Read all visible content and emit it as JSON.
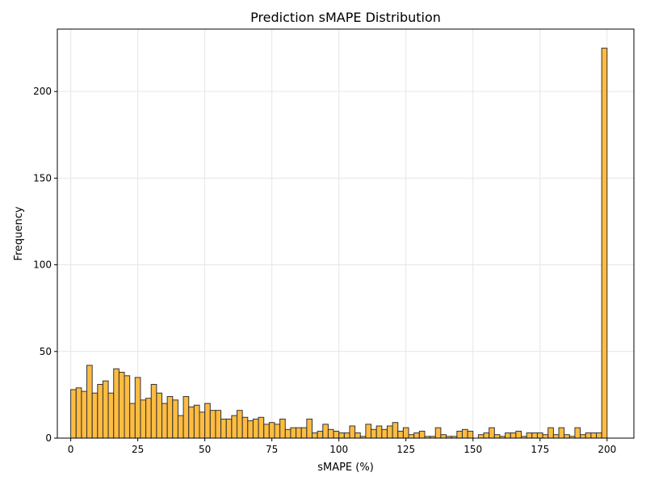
{
  "chart_data": {
    "type": "bar",
    "title": "Prediction sMAPE Distribution",
    "xlabel": "sMAPE (%)",
    "ylabel": "Frequency",
    "xlim": [
      -5,
      210
    ],
    "ylim": [
      0,
      236
    ],
    "xticks": [
      0,
      25,
      50,
      75,
      100,
      125,
      150,
      175,
      200
    ],
    "yticks": [
      0,
      50,
      100,
      150,
      200
    ],
    "grid": true,
    "bin_width": 2,
    "bar_color": "#FFB020",
    "edge_color": "#333333",
    "bins": [
      {
        "x": 0,
        "count": 28
      },
      {
        "x": 2,
        "count": 29
      },
      {
        "x": 4,
        "count": 27
      },
      {
        "x": 6,
        "count": 42
      },
      {
        "x": 8,
        "count": 26
      },
      {
        "x": 10,
        "count": 31
      },
      {
        "x": 12,
        "count": 33
      },
      {
        "x": 14,
        "count": 26
      },
      {
        "x": 16,
        "count": 40
      },
      {
        "x": 18,
        "count": 38
      },
      {
        "x": 20,
        "count": 36
      },
      {
        "x": 22,
        "count": 20
      },
      {
        "x": 24,
        "count": 35
      },
      {
        "x": 26,
        "count": 22
      },
      {
        "x": 28,
        "count": 23
      },
      {
        "x": 30,
        "count": 31
      },
      {
        "x": 32,
        "count": 26
      },
      {
        "x": 34,
        "count": 20
      },
      {
        "x": 36,
        "count": 24
      },
      {
        "x": 38,
        "count": 22
      },
      {
        "x": 40,
        "count": 13
      },
      {
        "x": 42,
        "count": 24
      },
      {
        "x": 44,
        "count": 18
      },
      {
        "x": 46,
        "count": 19
      },
      {
        "x": 48,
        "count": 15
      },
      {
        "x": 50,
        "count": 20
      },
      {
        "x": 52,
        "count": 16
      },
      {
        "x": 54,
        "count": 16
      },
      {
        "x": 56,
        "count": 11
      },
      {
        "x": 58,
        "count": 11
      },
      {
        "x": 60,
        "count": 13
      },
      {
        "x": 62,
        "count": 16
      },
      {
        "x": 64,
        "count": 12
      },
      {
        "x": 66,
        "count": 10
      },
      {
        "x": 68,
        "count": 11
      },
      {
        "x": 70,
        "count": 12
      },
      {
        "x": 72,
        "count": 8
      },
      {
        "x": 74,
        "count": 9
      },
      {
        "x": 76,
        "count": 8
      },
      {
        "x": 78,
        "count": 11
      },
      {
        "x": 80,
        "count": 5
      },
      {
        "x": 82,
        "count": 6
      },
      {
        "x": 84,
        "count": 6
      },
      {
        "x": 86,
        "count": 6
      },
      {
        "x": 88,
        "count": 11
      },
      {
        "x": 90,
        "count": 3
      },
      {
        "x": 92,
        "count": 4
      },
      {
        "x": 94,
        "count": 8
      },
      {
        "x": 96,
        "count": 5
      },
      {
        "x": 98,
        "count": 4
      },
      {
        "x": 100,
        "count": 3
      },
      {
        "x": 102,
        "count": 3
      },
      {
        "x": 104,
        "count": 7
      },
      {
        "x": 106,
        "count": 3
      },
      {
        "x": 108,
        "count": 1
      },
      {
        "x": 110,
        "count": 8
      },
      {
        "x": 112,
        "count": 5
      },
      {
        "x": 114,
        "count": 7
      },
      {
        "x": 116,
        "count": 5
      },
      {
        "x": 118,
        "count": 7
      },
      {
        "x": 120,
        "count": 9
      },
      {
        "x": 122,
        "count": 4
      },
      {
        "x": 124,
        "count": 6
      },
      {
        "x": 126,
        "count": 2
      },
      {
        "x": 128,
        "count": 3
      },
      {
        "x": 130,
        "count": 4
      },
      {
        "x": 132,
        "count": 1
      },
      {
        "x": 134,
        "count": 1
      },
      {
        "x": 136,
        "count": 6
      },
      {
        "x": 138,
        "count": 2
      },
      {
        "x": 140,
        "count": 1
      },
      {
        "x": 142,
        "count": 1
      },
      {
        "x": 144,
        "count": 4
      },
      {
        "x": 146,
        "count": 5
      },
      {
        "x": 148,
        "count": 4
      },
      {
        "x": 150,
        "count": 0
      },
      {
        "x": 152,
        "count": 2
      },
      {
        "x": 154,
        "count": 3
      },
      {
        "x": 156,
        "count": 6
      },
      {
        "x": 158,
        "count": 2
      },
      {
        "x": 160,
        "count": 1
      },
      {
        "x": 162,
        "count": 3
      },
      {
        "x": 164,
        "count": 3
      },
      {
        "x": 166,
        "count": 4
      },
      {
        "x": 168,
        "count": 1
      },
      {
        "x": 170,
        "count": 3
      },
      {
        "x": 172,
        "count": 3
      },
      {
        "x": 174,
        "count": 3
      },
      {
        "x": 176,
        "count": 2
      },
      {
        "x": 178,
        "count": 6
      },
      {
        "x": 180,
        "count": 2
      },
      {
        "x": 182,
        "count": 6
      },
      {
        "x": 184,
        "count": 2
      },
      {
        "x": 186,
        "count": 1
      },
      {
        "x": 188,
        "count": 6
      },
      {
        "x": 190,
        "count": 2
      },
      {
        "x": 192,
        "count": 3
      },
      {
        "x": 194,
        "count": 3
      },
      {
        "x": 196,
        "count": 3
      },
      {
        "x": 198,
        "count": 225
      }
    ]
  }
}
